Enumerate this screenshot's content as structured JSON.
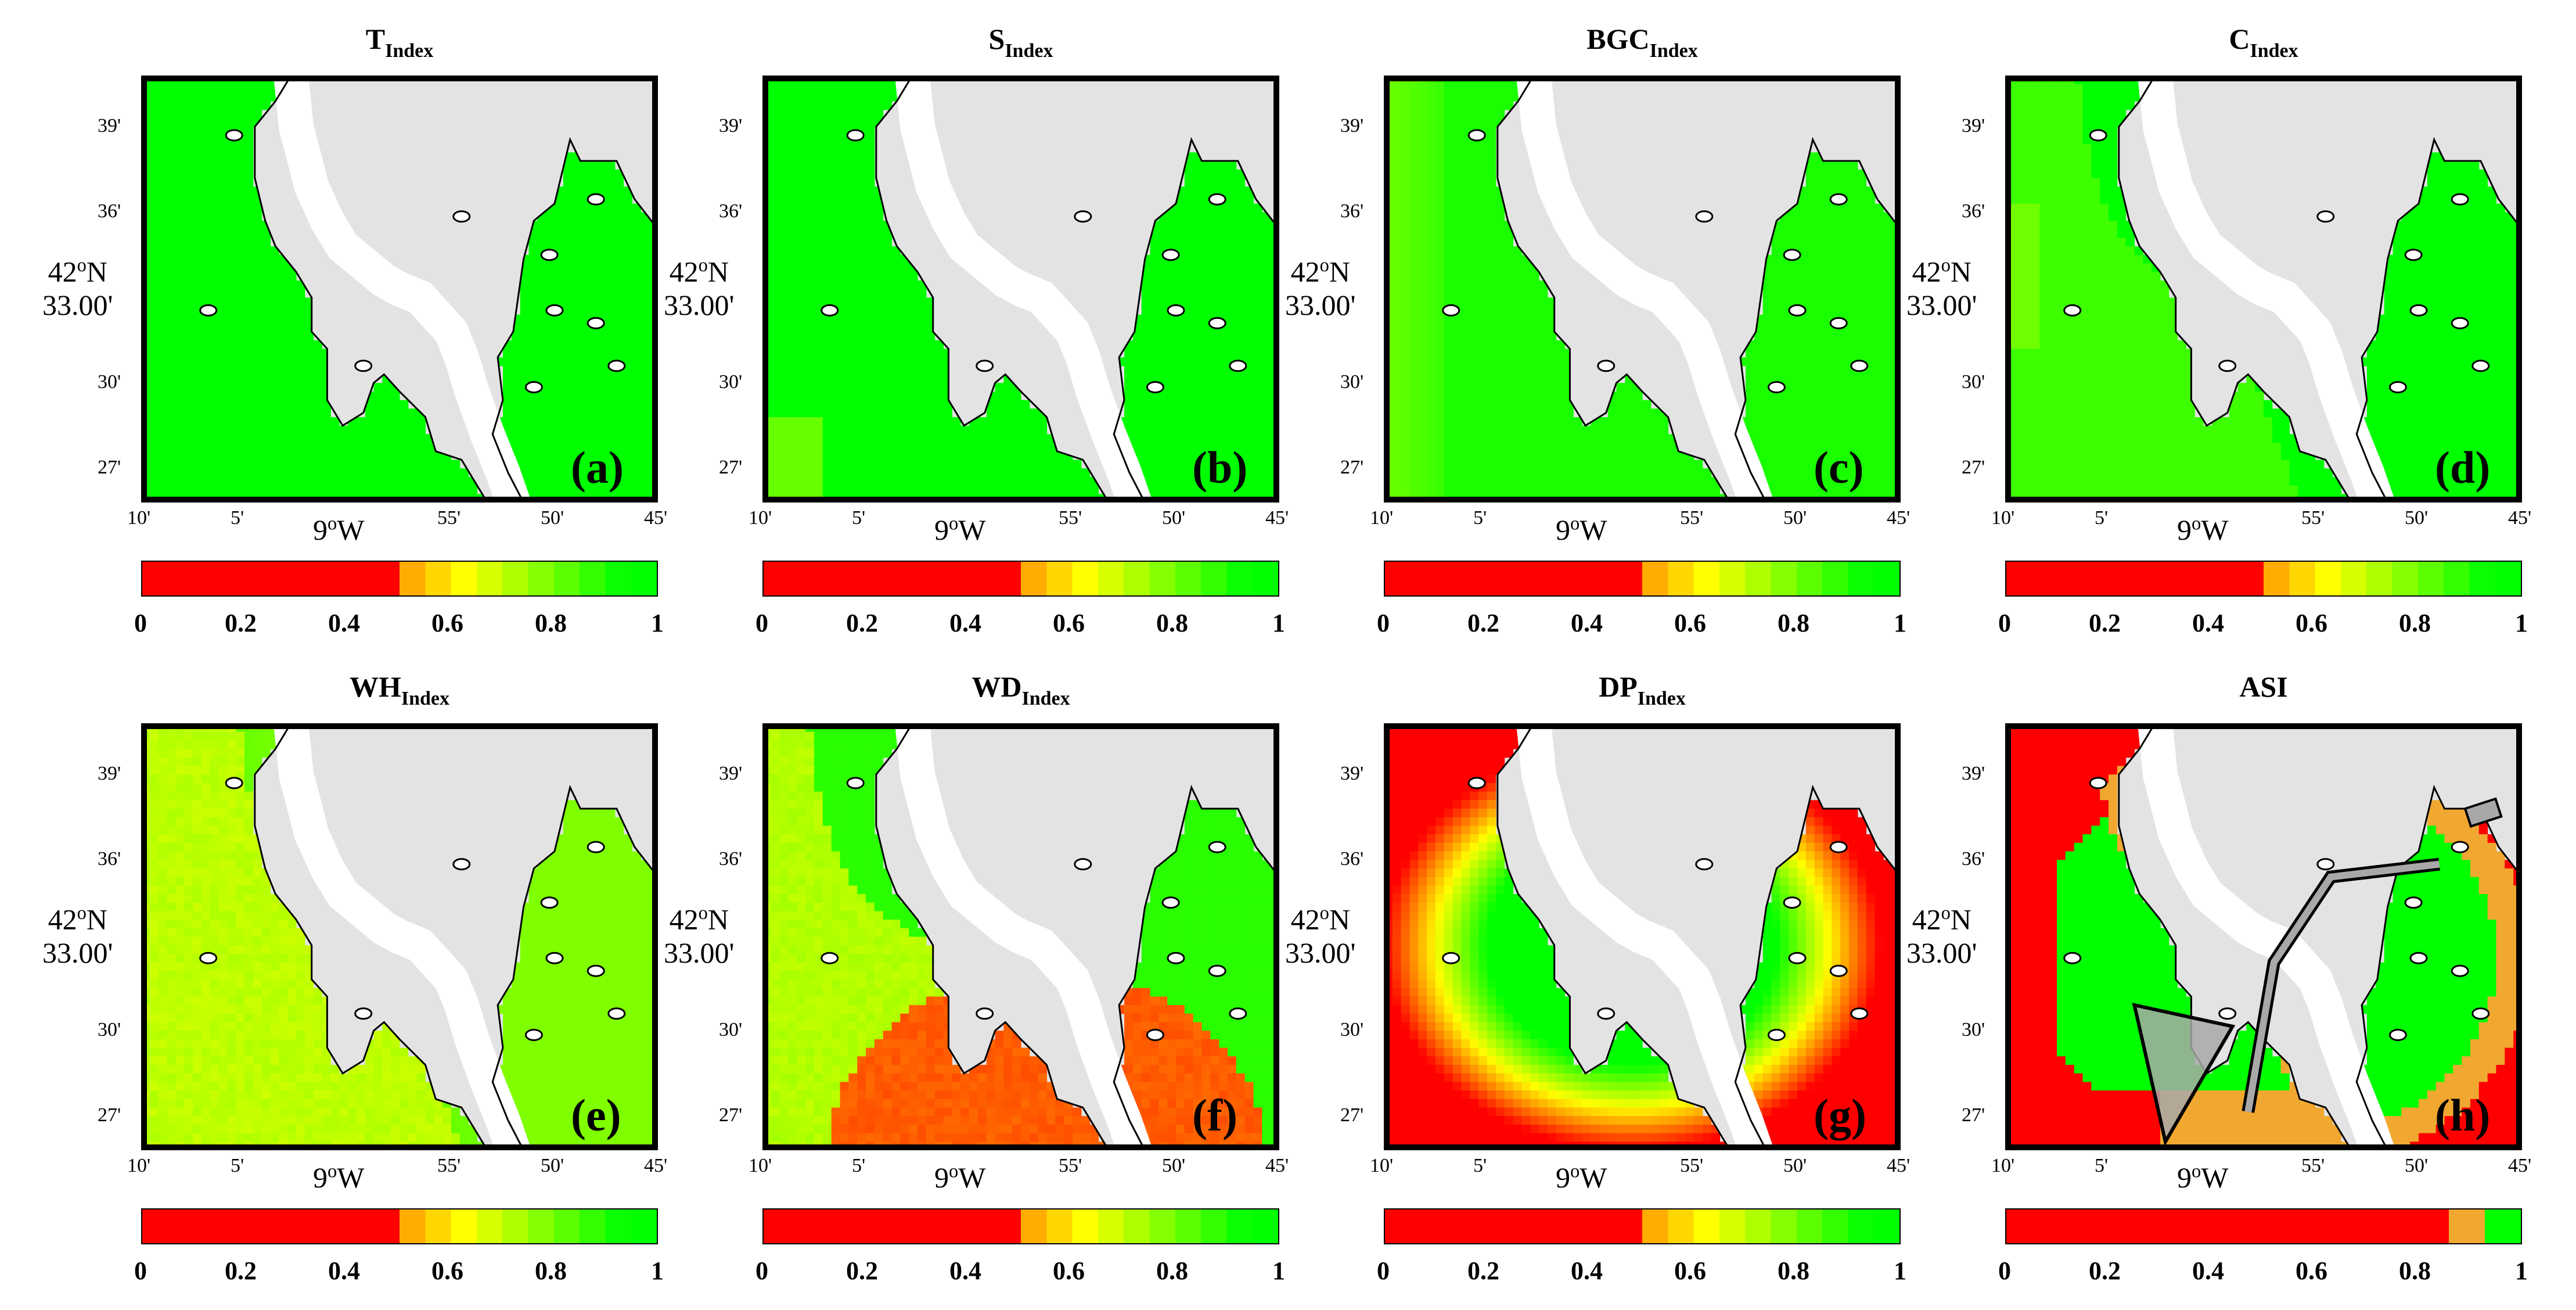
{
  "common": {
    "lat_ticks": [
      "39'",
      "36'",
      "33.00'",
      "30'",
      "27'"
    ],
    "lat_big": {
      "deg": "42",
      "sup": "o",
      "hem": "N"
    },
    "lon_ticks": [
      "10'",
      "5'",
      "55'",
      "50'",
      "45'"
    ],
    "lon_big": {
      "deg": "9",
      "sup": "o",
      "hem": "W"
    },
    "cbar_ticks": [
      "0",
      "0.2",
      "0.4",
      "0.6",
      "0.8",
      "1"
    ]
  },
  "colors": {
    "red": "#ff0000",
    "green": "#00ff00",
    "orange": "#f0a830",
    "land": "#e3e3e3",
    "gray": "#a8a8a8"
  },
  "panels": [
    {
      "title": "T",
      "sub": "Index",
      "letter": "(a)",
      "mode": "green"
    },
    {
      "title": "S",
      "sub": "Index",
      "letter": "(b)",
      "mode": "s"
    },
    {
      "title": "BGC",
      "sub": "Index",
      "letter": "(c)",
      "mode": "bgc"
    },
    {
      "title": "C",
      "sub": "Index",
      "letter": "(d)",
      "mode": "c"
    },
    {
      "title": "WH",
      "sub": "Index",
      "letter": "(e)",
      "mode": "wh"
    },
    {
      "title": "WD",
      "sub": "Index",
      "letter": "(f)",
      "mode": "wd"
    },
    {
      "title": "DP",
      "sub": "Index",
      "letter": "(g)",
      "mode": "dp"
    },
    {
      "title": "ASI",
      "sub": "",
      "letter": "(h)",
      "mode": "asi"
    }
  ]
}
